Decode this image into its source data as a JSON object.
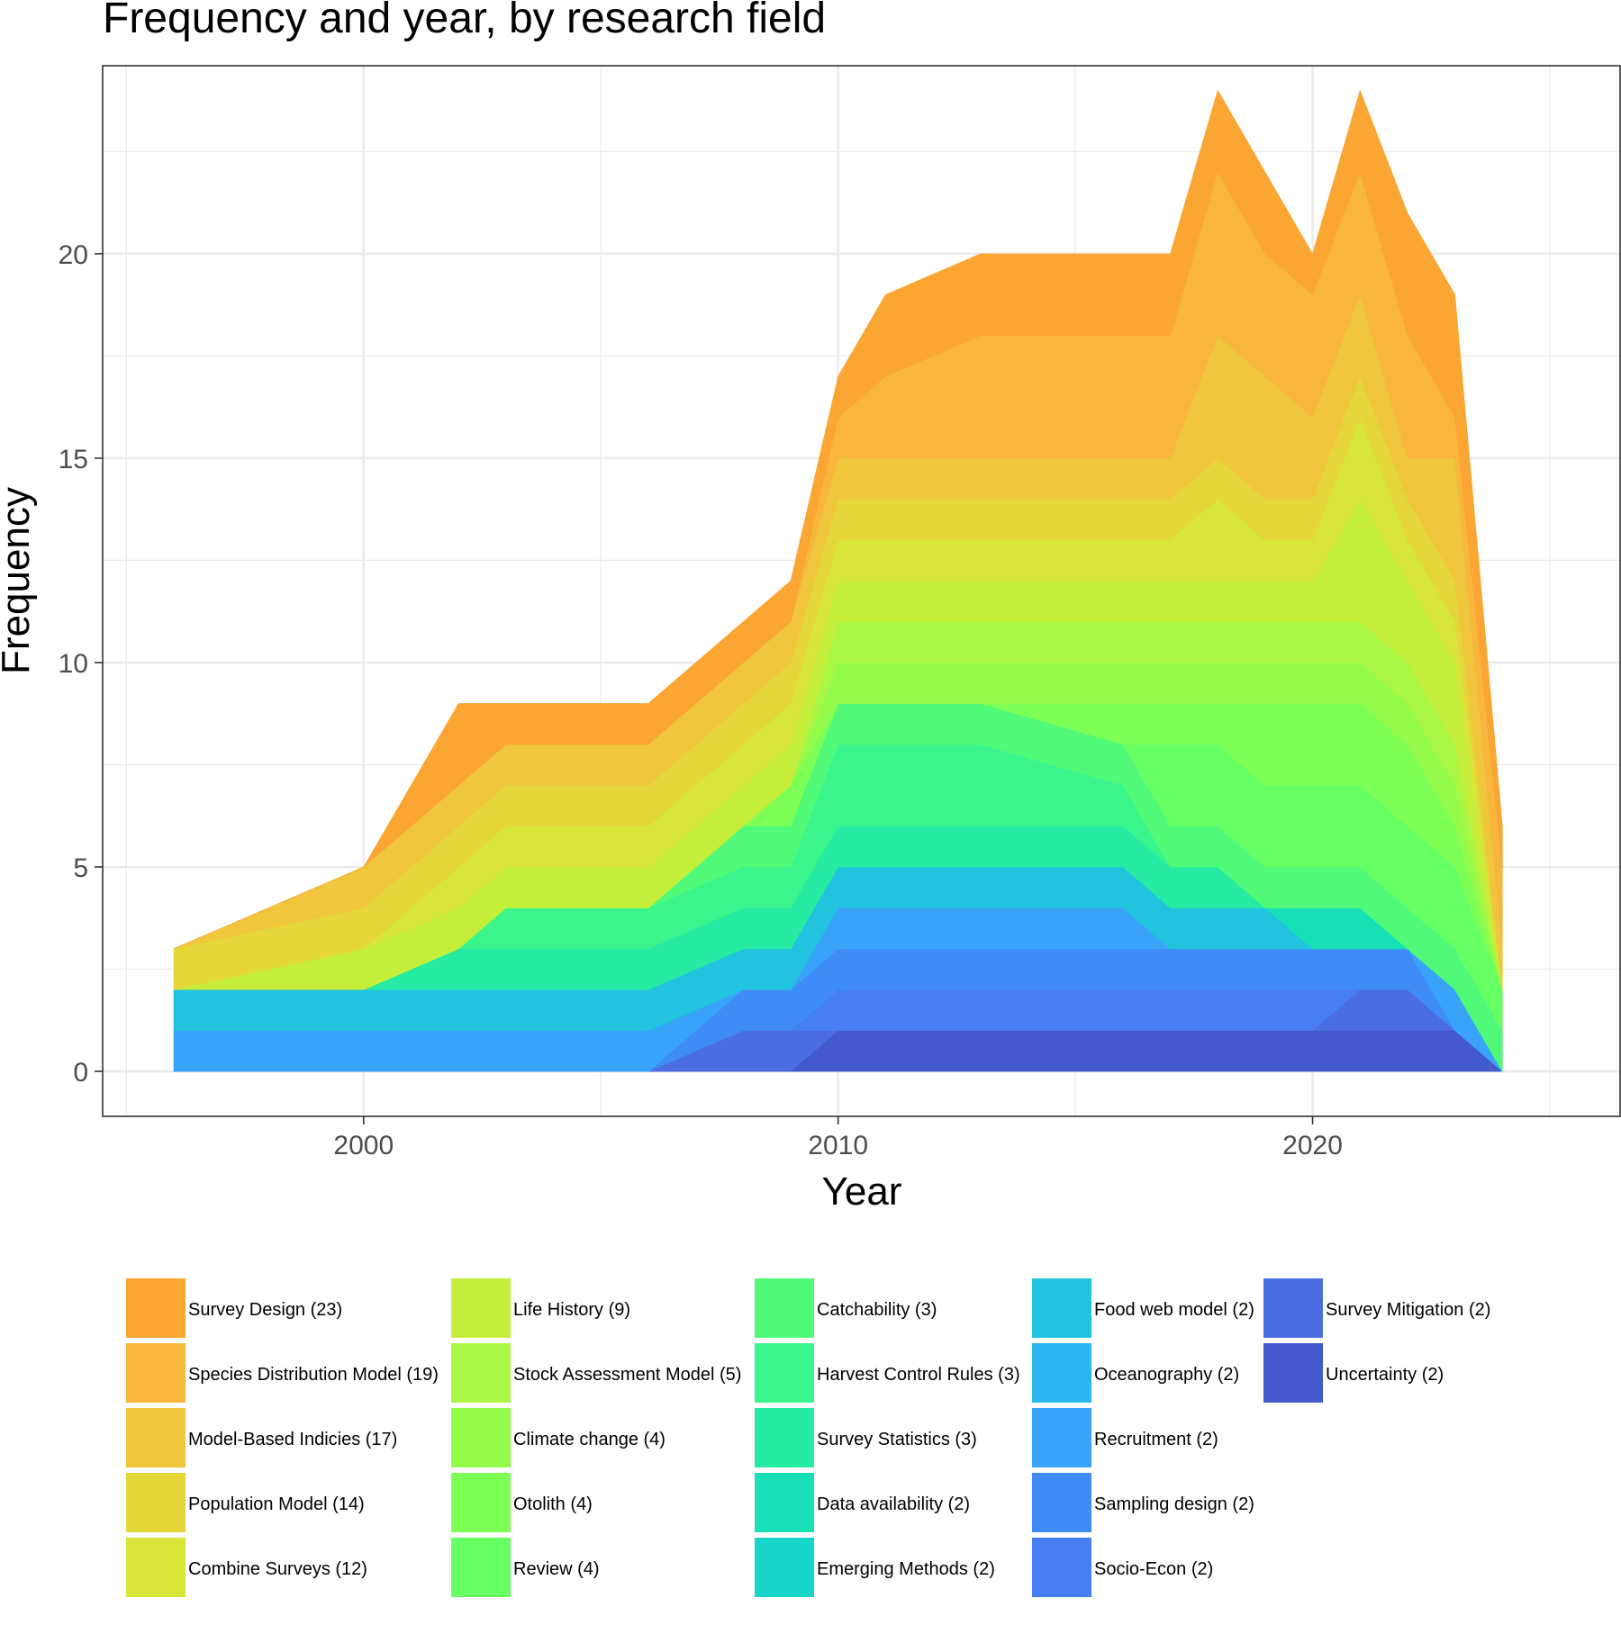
{
  "chart_data": {
    "type": "area",
    "stacked": true,
    "title": "Frequency and year, by research field",
    "xlabel": "Year",
    "ylabel": "Frequency",
    "xlim": [
      1994.5,
      2026.5
    ],
    "ylim": [
      -1.1,
      24.6
    ],
    "x_ticks": [
      2000,
      2010,
      2020
    ],
    "y_ticks": [
      0,
      5,
      10,
      15,
      20
    ],
    "grid": true,
    "legend_position": "bottom",
    "stack_order": [
      "Uncertainty (2)",
      "Survey Mitigation (2)",
      "Socio-Econ (2)",
      "Sampling design (2)",
      "Recruitment (2)",
      "Oceanography (2)",
      "Food web model (2)",
      "Emerging Methods (2)",
      "Data availability (2)",
      "Survey Statistics (3)",
      "Harvest Control Rules (3)",
      "Catchability (3)",
      "Review (4)",
      "Otolith (4)",
      "Climate change (4)",
      "Stock Assessment Model (5)",
      "Life History (9)",
      "Combine Surveys (12)",
      "Population Model (14)",
      "Model-Based Indicies (17)",
      "Species Distribution Model (19)",
      "Survey Design (23)"
    ],
    "x": [
      1996,
      2000,
      2002,
      2003,
      2004,
      2006,
      2008,
      2009,
      2010,
      2011,
      2013,
      2016,
      2017,
      2018,
      2019,
      2020,
      2021,
      2022,
      2023,
      2024
    ],
    "series": [
      {
        "name": "Uncertainty (2)",
        "color": "#4359CC",
        "values": [
          0,
          0,
          0,
          0,
          0,
          0,
          0,
          0,
          1,
          1,
          1,
          1,
          1,
          1,
          1,
          1,
          1,
          1,
          1,
          0
        ]
      },
      {
        "name": "Survey Mitigation (2)",
        "color": "#4A6EE2",
        "values": [
          0,
          0,
          0,
          0,
          0,
          0,
          1,
          1,
          0,
          0,
          0,
          0,
          0,
          0,
          0,
          0,
          1,
          1,
          0,
          0
        ]
      },
      {
        "name": "Socio-Econ (2)",
        "color": "#477EF4",
        "values": [
          0,
          0,
          0,
          0,
          0,
          0,
          0,
          0,
          1,
          1,
          1,
          1,
          1,
          1,
          1,
          1,
          0,
          0,
          0,
          0
        ]
      },
      {
        "name": "Sampling design (2)",
        "color": "#3F8CF8",
        "values": [
          0,
          0,
          0,
          0,
          0,
          0,
          1,
          1,
          1,
          1,
          1,
          1,
          1,
          1,
          1,
          1,
          1,
          1,
          0,
          0
        ]
      },
      {
        "name": "Recruitment (2)",
        "color": "#38A3F9",
        "values": [
          1,
          1,
          1,
          1,
          1,
          1,
          0,
          0,
          1,
          1,
          1,
          1,
          0,
          0,
          0,
          0,
          0,
          0,
          1,
          0
        ]
      },
      {
        "name": "Oceanography (2)",
        "color": "#2BB6EE",
        "values": [
          0,
          0,
          0,
          0,
          0,
          0,
          0,
          0,
          0,
          0,
          0,
          0,
          0,
          0,
          0,
          0,
          0,
          0,
          0,
          0
        ]
      },
      {
        "name": "Food web model (2)",
        "color": "#21C3DE",
        "values": [
          1,
          1,
          1,
          1,
          1,
          1,
          1,
          1,
          1,
          1,
          1,
          1,
          1,
          1,
          1,
          0,
          0,
          0,
          0,
          0
        ]
      },
      {
        "name": "Emerging Methods (2)",
        "color": "#17D6C9",
        "values": [
          0,
          0,
          0,
          0,
          0,
          0,
          0,
          0,
          0,
          0,
          0,
          0,
          0,
          0,
          0,
          0,
          0,
          0,
          0,
          0
        ]
      },
      {
        "name": "Data availability (2)",
        "color": "#17E0B7",
        "values": [
          0,
          0,
          0,
          0,
          0,
          0,
          0,
          0,
          0,
          0,
          0,
          0,
          0,
          0,
          0,
          1,
          1,
          0,
          0,
          0
        ]
      },
      {
        "name": "Survey Statistics (3)",
        "color": "#25EBA3",
        "values": [
          0,
          0,
          1,
          1,
          1,
          1,
          1,
          1,
          1,
          1,
          1,
          1,
          1,
          1,
          0,
          0,
          0,
          0,
          0,
          0
        ]
      },
      {
        "name": "Harvest Control Rules (3)",
        "color": "#3AF58C",
        "values": [
          0,
          0,
          0,
          1,
          1,
          1,
          1,
          1,
          2,
          2,
          2,
          1,
          0,
          0,
          0,
          0,
          0,
          0,
          0,
          0
        ]
      },
      {
        "name": "Catchability (3)",
        "color": "#50FA78",
        "values": [
          0,
          0,
          0,
          0,
          0,
          0,
          1,
          1,
          1,
          1,
          1,
          1,
          1,
          1,
          1,
          1,
          1,
          1,
          1,
          1
        ]
      },
      {
        "name": "Review (4)",
        "color": "#66FF64",
        "values": [
          0,
          0,
          0,
          0,
          0,
          0,
          0,
          0,
          0,
          0,
          0,
          0,
          2,
          2,
          2,
          2,
          2,
          2,
          2,
          1
        ]
      },
      {
        "name": "Otolith (4)",
        "color": "#7DFF56",
        "values": [
          0,
          0,
          0,
          0,
          0,
          0,
          0,
          1,
          0,
          0,
          0,
          1,
          1,
          1,
          2,
          2,
          2,
          2,
          1,
          0
        ]
      },
      {
        "name": "Climate change (4)",
        "color": "#95FB4A",
        "values": [
          0,
          0,
          0,
          0,
          0,
          0,
          0,
          0,
          1,
          1,
          1,
          1,
          1,
          1,
          1,
          1,
          1,
          1,
          1,
          0
        ]
      },
      {
        "name": "Stock Assessment Model (5)",
        "color": "#AAF644",
        "values": [
          0,
          0,
          0,
          0,
          0,
          0,
          0,
          0,
          1,
          1,
          1,
          1,
          1,
          1,
          1,
          1,
          1,
          1,
          1,
          0
        ]
      },
      {
        "name": "Life History (9)",
        "color": "#C4EE39",
        "values": [
          0,
          1,
          1,
          1,
          1,
          1,
          1,
          1,
          1,
          1,
          1,
          1,
          1,
          1,
          1,
          1,
          3,
          2,
          2,
          0
        ]
      },
      {
        "name": "Combine Surveys (12)",
        "color": "#D8E539",
        "values": [
          0,
          0,
          1,
          1,
          1,
          1,
          1,
          1,
          1,
          1,
          1,
          1,
          1,
          2,
          1,
          1,
          2,
          1,
          1,
          0
        ]
      },
      {
        "name": "Population Model (14)",
        "color": "#E5D63A",
        "values": [
          1,
          1,
          1,
          1,
          1,
          1,
          1,
          1,
          1,
          1,
          1,
          1,
          1,
          1,
          1,
          1,
          1,
          1,
          1,
          0
        ]
      },
      {
        "name": "Model-Based Indicies (17)",
        "color": "#F0C63C",
        "values": [
          0,
          1,
          1,
          1,
          1,
          1,
          1,
          1,
          1,
          1,
          1,
          1,
          1,
          3,
          3,
          2,
          2,
          1,
          3,
          1
        ]
      },
      {
        "name": "Species Distribution Model (19)",
        "color": "#F8B63C",
        "values": [
          0,
          0,
          0,
          0,
          0,
          0,
          0,
          0,
          1,
          2,
          3,
          3,
          3,
          4,
          3,
          3,
          3,
          3,
          1,
          2
        ]
      },
      {
        "name": "Survey Design (23)",
        "color": "#FBA533",
        "values": [
          0,
          0,
          2,
          1,
          1,
          1,
          1,
          1,
          1,
          2,
          2,
          2,
          2,
          2,
          2,
          1,
          2,
          3,
          3,
          1
        ]
      }
    ],
    "legend": [
      [
        "Survey Design (23)",
        "Species Distribution Model (19)",
        "Model-Based Indicies (17)",
        "Population Model (14)",
        "Combine Surveys (12)"
      ],
      [
        "Life History (9)",
        "Stock Assessment Model (5)",
        "Climate change (4)",
        "Otolith (4)",
        "Review (4)"
      ],
      [
        "Catchability (3)",
        "Harvest Control Rules (3)",
        "Survey Statistics (3)",
        "Data availability (2)",
        "Emerging Methods (2)"
      ],
      [
        "Food web model (2)",
        "Oceanography (2)",
        "Recruitment (2)",
        "Sampling design (2)",
        "Socio-Econ (2)"
      ],
      [
        "Survey Mitigation (2)",
        "Uncertainty (2)"
      ]
    ]
  }
}
